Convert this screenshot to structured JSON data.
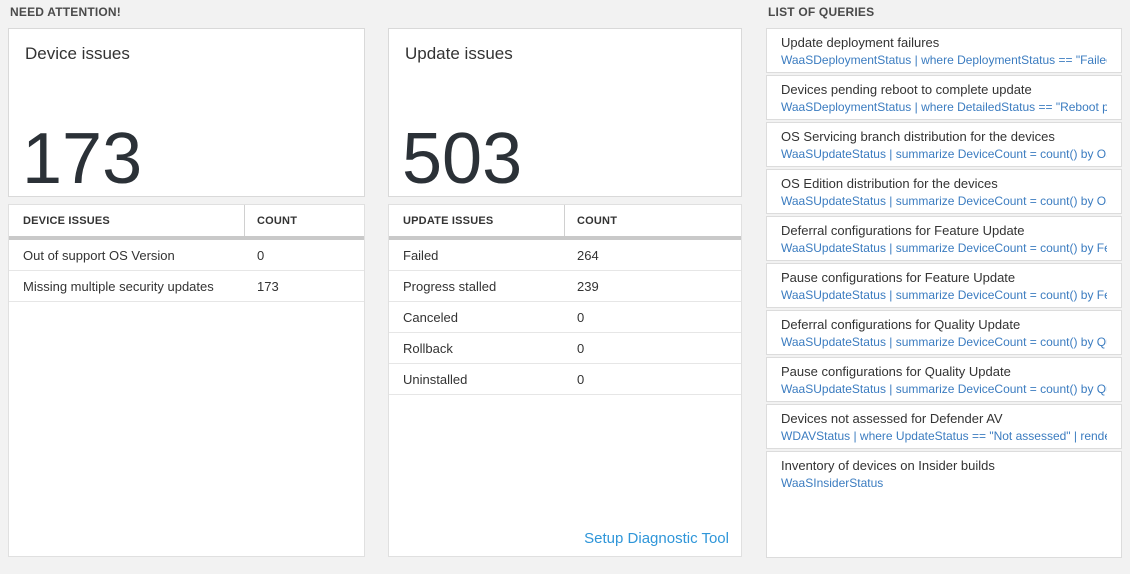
{
  "colors": {
    "page_background": "#f2f2f2",
    "card_background": "#ffffff",
    "card_border": "#d9d9d9",
    "big_number": "#2b3137",
    "query_text_blue": "#3b7cc0",
    "setup_link_blue": "#2f96d9",
    "header_bar_gray": "#c9c9c9"
  },
  "need_attention": {
    "label": "NEED ATTENTION!",
    "cards": [
      {
        "title": "Device issues",
        "value": "173",
        "table": {
          "headers": {
            "label": "DEVICE ISSUES",
            "count": "COUNT"
          },
          "rows": [
            {
              "label": "Out of support OS Version",
              "count": "0"
            },
            {
              "label": "Missing multiple security updates",
              "count": "173"
            }
          ]
        }
      },
      {
        "title": "Update issues",
        "value": "503",
        "table": {
          "headers": {
            "label": "UPDATE ISSUES",
            "count": "COUNT"
          },
          "rows": [
            {
              "label": "Failed",
              "count": "264"
            },
            {
              "label": "Progress stalled",
              "count": "239"
            },
            {
              "label": "Canceled",
              "count": "0"
            },
            {
              "label": "Rollback",
              "count": "0"
            },
            {
              "label": "Uninstalled",
              "count": "0"
            }
          ]
        },
        "footer_link": "Setup Diagnostic Tool"
      }
    ]
  },
  "queries": {
    "label": "LIST OF QUERIES",
    "items": [
      {
        "title": "Update deployment failures",
        "query": "WaaSDeploymentStatus | where DeploymentStatus == \"Failed\" |..."
      },
      {
        "title": "Devices pending reboot to complete update",
        "query": "WaaSDeploymentStatus | where DetailedStatus == \"Reboot pend..."
      },
      {
        "title": "OS Servicing branch distribution for the devices",
        "query": "WaaSUpdateStatus | summarize DeviceCount = count() by OSSer..."
      },
      {
        "title": "OS Edition distribution for the devices",
        "query": "WaaSUpdateStatus | summarize DeviceCount = count() by OSEdit..."
      },
      {
        "title": "Deferral configurations for Feature Update",
        "query": "WaaSUpdateStatus | summarize DeviceCount = count() by Featur..."
      },
      {
        "title": "Pause configurations for Feature Update",
        "query": "WaaSUpdateStatus | summarize DeviceCount = count() by Featur..."
      },
      {
        "title": "Deferral configurations for Quality Update",
        "query": "WaaSUpdateStatus | summarize DeviceCount = count() by Qualit..."
      },
      {
        "title": "Pause configurations for Quality Update",
        "query": "WaaSUpdateStatus | summarize DeviceCount = count() by Qualit..."
      },
      {
        "title": "Devices not assessed for Defender AV",
        "query": "WDAVStatus | where UpdateStatus == \"Not assessed\" | render ta..."
      },
      {
        "title": "Inventory of devices on Insider builds",
        "query": "WaaSInsiderStatus"
      }
    ]
  }
}
